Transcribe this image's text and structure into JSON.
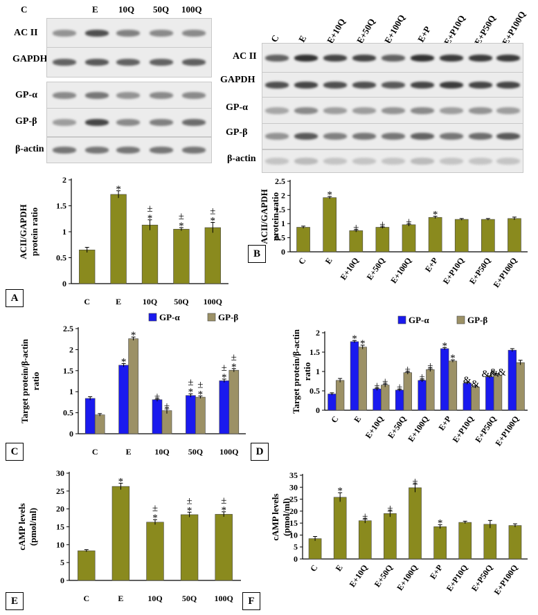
{
  "panel_letters": {
    "A": "A",
    "B": "B",
    "C": "C",
    "D": "D",
    "E": "E",
    "F": "F"
  },
  "blots_left": {
    "lanes": [
      "C",
      "E",
      "10Q",
      "50Q",
      "100Q"
    ],
    "rows": [
      "AC II",
      "GAPDH",
      "GP-α",
      "GP-β",
      "β-actin"
    ]
  },
  "blots_right": {
    "lanes": [
      "C",
      "E",
      "E+10Q",
      "E+50Q",
      "E+100Q",
      "E+P",
      "E+P10Q",
      "E+P50Q",
      "E+P100Q"
    ],
    "rows": [
      "AC II",
      "GAPDH",
      "GP-α",
      "GP-β",
      "β-actin"
    ]
  },
  "colors": {
    "olive": "#8a8a1e",
    "blue": "#1a1aee",
    "tan": "#9c9166"
  },
  "chart_data": [
    {
      "id": "A",
      "type": "bar",
      "categories": [
        "C",
        "E",
        "10Q",
        "50Q",
        "100Q"
      ],
      "values": [
        0.65,
        1.72,
        1.13,
        1.05,
        1.08
      ],
      "errors": [
        0.05,
        0.07,
        0.1,
        0.03,
        0.1
      ],
      "annotations": [
        "",
        "*",
        "±\n*",
        "±\n*",
        "±\n*"
      ],
      "ylabel": "ACII/GAPDH protein ratio",
      "ylim": [
        0,
        2
      ],
      "yticks": [
        0,
        0.5,
        1,
        1.5,
        2
      ]
    },
    {
      "id": "B",
      "type": "bar",
      "categories": [
        "C",
        "E",
        "E+10Q",
        "E+50Q",
        "E+100Q",
        "E+P",
        "E+P10Q",
        "E+P50Q",
        "E+P100Q"
      ],
      "values": [
        0.87,
        1.92,
        0.75,
        0.87,
        0.96,
        1.22,
        1.15,
        1.15,
        1.18
      ],
      "errors": [
        0.04,
        0.04,
        0.05,
        0.04,
        0.05,
        0.04,
        0.03,
        0.03,
        0.05
      ],
      "annotations": [
        "",
        "*",
        "±",
        "±",
        "±",
        "*",
        "",
        "",
        ""
      ],
      "ylabel": "ACII/GAPDH protein ratio",
      "ylim": [
        0,
        2.5
      ],
      "yticks": [
        0,
        0.5,
        1,
        1.5,
        2,
        2.5
      ]
    },
    {
      "id": "C",
      "type": "bar",
      "categories": [
        "C",
        "E",
        "10Q",
        "50Q",
        "100Q"
      ],
      "series": [
        {
          "name": "GP-α",
          "values": [
            0.84,
            1.63,
            0.81,
            0.91,
            1.26
          ],
          "errors": [
            0.04,
            0.04,
            0.04,
            0.04,
            0.04
          ],
          "annotations": [
            "",
            "*",
            "±",
            "±\n*",
            "±\n*"
          ]
        },
        {
          "name": "GP-β",
          "values": [
            0.45,
            2.26,
            0.55,
            0.87,
            1.51
          ],
          "errors": [
            0.03,
            0.04,
            0.07,
            0.03,
            0.04
          ],
          "annotations": [
            "",
            "*",
            "±",
            "±\n*",
            "±\n*"
          ]
        }
      ],
      "ylabel": "Target protein/β-actin ratio",
      "ylim": [
        0,
        2.5
      ],
      "yticks": [
        0,
        0.5,
        1,
        1.5,
        2,
        2.5
      ],
      "legend": "top"
    },
    {
      "id": "D",
      "type": "bar",
      "categories": [
        "C",
        "E",
        "E+10Q",
        "E+50Q",
        "E+100Q",
        "E+P",
        "E+P10Q",
        "E+P50Q",
        "E+P100Q"
      ],
      "series": [
        {
          "name": "GP-α",
          "values": [
            0.42,
            1.77,
            0.55,
            0.52,
            0.77,
            1.59,
            0.7,
            0.86,
            1.55
          ],
          "errors": [
            0.03,
            0.03,
            0.04,
            0.03,
            0.04,
            0.03,
            0.03,
            0.03,
            0.04
          ],
          "annotations": [
            "",
            "*",
            "±",
            "±",
            "±",
            "*",
            "&",
            "&&",
            ""
          ]
        },
        {
          "name": "GP-β",
          "values": [
            0.77,
            1.63,
            0.65,
            0.97,
            1.05,
            1.27,
            0.6,
            0.9,
            1.23
          ],
          "errors": [
            0.05,
            0.05,
            0.05,
            0.04,
            0.05,
            0.03,
            0.03,
            0.04,
            0.06
          ],
          "annotations": [
            "",
            "*",
            "±",
            "±",
            "±",
            "*",
            "&",
            "&&",
            ""
          ]
        }
      ],
      "ylabel": "Target protein/β-actin ratio",
      "ylim": [
        0,
        2
      ],
      "yticks": [
        0,
        0.5,
        1,
        1.5,
        2
      ],
      "legend": "top-right"
    },
    {
      "id": "E",
      "type": "bar",
      "categories": [
        "C",
        "E",
        "10Q",
        "50Q",
        "100Q"
      ],
      "values": [
        8.3,
        26.3,
        16.3,
        18.4,
        18.5
      ],
      "errors": [
        0.3,
        0.9,
        0.7,
        0.7,
        0.7
      ],
      "annotations": [
        "",
        "*",
        "±\n*",
        "±\n*",
        "±\n*"
      ],
      "ylabel": "cAMP levels (pmol/ml)",
      "ylim": [
        0,
        30
      ],
      "yticks": [
        0,
        5,
        10,
        15,
        20,
        25,
        30
      ]
    },
    {
      "id": "F",
      "type": "bar",
      "categories": [
        "C",
        "E",
        "E+10Q",
        "E+50Q",
        "E+100Q",
        "E+P",
        "E+P10Q",
        "E+P50Q",
        "E+P100Q"
      ],
      "values": [
        8.5,
        25.8,
        16,
        19,
        29.8,
        13.5,
        15.3,
        14.5,
        14
      ],
      "errors": [
        0.9,
        1.9,
        1,
        1.4,
        1.9,
        0.8,
        0.5,
        1.6,
        0.7
      ],
      "annotations": [
        "",
        "*",
        "±",
        "±",
        "±",
        "*",
        "",
        "",
        ""
      ],
      "ylabel": "cAMP levels (pmol/ml)",
      "ylim": [
        0,
        35
      ],
      "yticks": [
        0,
        5,
        10,
        15,
        20,
        25,
        30,
        35
      ]
    }
  ]
}
